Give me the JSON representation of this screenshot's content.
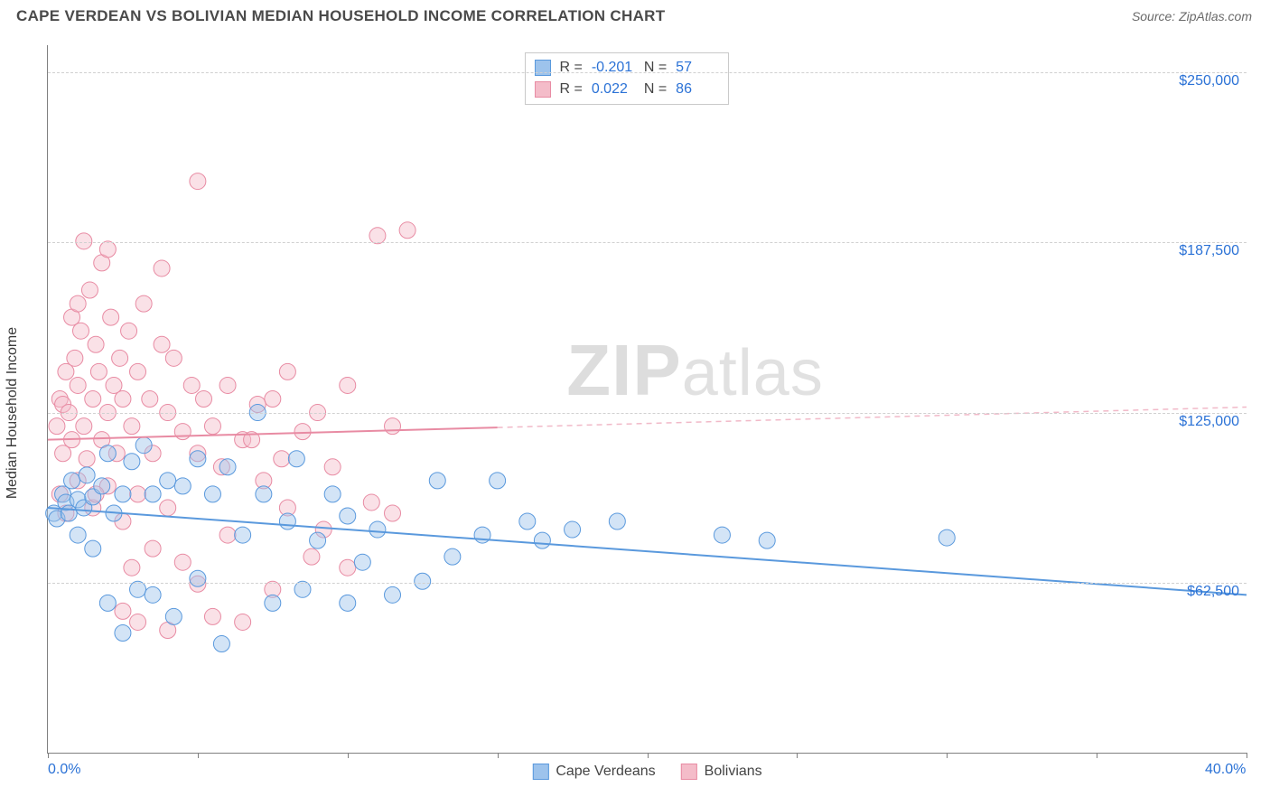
{
  "title": "CAPE VERDEAN VS BOLIVIAN MEDIAN HOUSEHOLD INCOME CORRELATION CHART",
  "source_label": "Source: ZipAtlas.com",
  "ylabel": "Median Household Income",
  "watermark": {
    "zip": "ZIP",
    "rest": "atlas"
  },
  "chart": {
    "type": "scatter",
    "background_color": "#ffffff",
    "grid_color": "#d0d0d0",
    "axis_color": "#808080",
    "text_color": "#4a4a4a",
    "value_label_color": "#2b72d6",
    "title_fontsize": 17,
    "label_fontsize": 16,
    "xlim": [
      0,
      40
    ],
    "ylim": [
      0,
      260000
    ],
    "x_ticks": [
      0,
      5,
      10,
      15,
      20,
      25,
      30,
      35,
      40
    ],
    "x_tick_labels": {
      "0": "0.0%",
      "40": "40.0%"
    },
    "y_gridlines": [
      62500,
      125000,
      187500,
      250000
    ],
    "y_grid_labels": {
      "62500": "$62,500",
      "125000": "$125,000",
      "187500": "$187,500",
      "250000": "$250,000"
    },
    "marker_radius": 9,
    "marker_opacity": 0.45,
    "line_width": 2,
    "series": [
      {
        "name": "Cape Verdeans",
        "color_fill": "#9dc3ec",
        "color_stroke": "#5a99dd",
        "R": "-0.201",
        "N": "57",
        "trend": {
          "y_at_x0": 90000,
          "y_at_xmax": 58000,
          "solid_until_x": 40
        },
        "points": [
          [
            0.2,
            88000
          ],
          [
            0.3,
            86000
          ],
          [
            0.5,
            95000
          ],
          [
            0.6,
            92000
          ],
          [
            0.7,
            88000
          ],
          [
            0.8,
            100000
          ],
          [
            1.0,
            93000
          ],
          [
            1.0,
            80000
          ],
          [
            1.2,
            90000
          ],
          [
            1.3,
            102000
          ],
          [
            1.5,
            94000
          ],
          [
            1.5,
            75000
          ],
          [
            1.8,
            98000
          ],
          [
            2.0,
            110000
          ],
          [
            2.0,
            55000
          ],
          [
            2.2,
            88000
          ],
          [
            2.5,
            95000
          ],
          [
            2.5,
            44000
          ],
          [
            2.8,
            107000
          ],
          [
            3.0,
            60000
          ],
          [
            3.2,
            113000
          ],
          [
            3.5,
            95000
          ],
          [
            3.5,
            58000
          ],
          [
            4.0,
            100000
          ],
          [
            4.2,
            50000
          ],
          [
            4.5,
            98000
          ],
          [
            5.0,
            108000
          ],
          [
            5.0,
            64000
          ],
          [
            5.5,
            95000
          ],
          [
            5.8,
            40000
          ],
          [
            6.0,
            105000
          ],
          [
            6.5,
            80000
          ],
          [
            7.0,
            125000
          ],
          [
            7.2,
            95000
          ],
          [
            7.5,
            55000
          ],
          [
            8.0,
            85000
          ],
          [
            8.3,
            108000
          ],
          [
            8.5,
            60000
          ],
          [
            9.0,
            78000
          ],
          [
            9.5,
            95000
          ],
          [
            10.0,
            87000
          ],
          [
            10.0,
            55000
          ],
          [
            10.5,
            70000
          ],
          [
            11.0,
            82000
          ],
          [
            11.5,
            58000
          ],
          [
            12.5,
            63000
          ],
          [
            13.0,
            100000
          ],
          [
            13.5,
            72000
          ],
          [
            14.5,
            80000
          ],
          [
            15.0,
            100000
          ],
          [
            16.0,
            85000
          ],
          [
            16.5,
            78000
          ],
          [
            17.5,
            82000
          ],
          [
            19.0,
            85000
          ],
          [
            22.5,
            80000
          ],
          [
            24.0,
            78000
          ],
          [
            30.0,
            79000
          ]
        ]
      },
      {
        "name": "Bolivians",
        "color_fill": "#f4bcc9",
        "color_stroke": "#e88ba3",
        "R": "0.022",
        "N": "86",
        "trend": {
          "y_at_x0": 115000,
          "y_at_xmax": 127000,
          "solid_until_x": 15
        },
        "points": [
          [
            0.3,
            120000
          ],
          [
            0.4,
            130000
          ],
          [
            0.5,
            128000
          ],
          [
            0.5,
            110000
          ],
          [
            0.6,
            140000
          ],
          [
            0.7,
            125000
          ],
          [
            0.8,
            160000
          ],
          [
            0.8,
            115000
          ],
          [
            0.9,
            145000
          ],
          [
            1.0,
            135000
          ],
          [
            1.0,
            100000
          ],
          [
            1.1,
            155000
          ],
          [
            1.2,
            120000
          ],
          [
            1.3,
            108000
          ],
          [
            1.4,
            170000
          ],
          [
            1.5,
            130000
          ],
          [
            1.5,
            90000
          ],
          [
            1.6,
            150000
          ],
          [
            1.7,
            140000
          ],
          [
            1.8,
            115000
          ],
          [
            1.8,
            180000
          ],
          [
            2.0,
            125000
          ],
          [
            2.0,
            98000
          ],
          [
            2.1,
            160000
          ],
          [
            2.2,
            135000
          ],
          [
            2.3,
            110000
          ],
          [
            2.4,
            145000
          ],
          [
            2.5,
            130000
          ],
          [
            2.5,
            85000
          ],
          [
            2.7,
            155000
          ],
          [
            2.8,
            120000
          ],
          [
            3.0,
            140000
          ],
          [
            3.0,
            95000
          ],
          [
            3.2,
            165000
          ],
          [
            3.4,
            130000
          ],
          [
            3.5,
            110000
          ],
          [
            3.5,
            75000
          ],
          [
            3.8,
            150000
          ],
          [
            4.0,
            125000
          ],
          [
            4.0,
            90000
          ],
          [
            4.2,
            145000
          ],
          [
            4.5,
            118000
          ],
          [
            4.5,
            70000
          ],
          [
            4.8,
            135000
          ],
          [
            5.0,
            110000
          ],
          [
            5.0,
            62000
          ],
          [
            5.2,
            130000
          ],
          [
            5.5,
            120000
          ],
          [
            5.5,
            50000
          ],
          [
            5.8,
            105000
          ],
          [
            6.0,
            135000
          ],
          [
            6.0,
            80000
          ],
          [
            6.5,
            115000
          ],
          [
            6.5,
            48000
          ],
          [
            7.0,
            128000
          ],
          [
            7.2,
            100000
          ],
          [
            7.5,
            130000
          ],
          [
            7.5,
            60000
          ],
          [
            8.0,
            140000
          ],
          [
            8.0,
            90000
          ],
          [
            8.5,
            118000
          ],
          [
            8.8,
            72000
          ],
          [
            9.0,
            125000
          ],
          [
            9.5,
            105000
          ],
          [
            10.0,
            135000
          ],
          [
            10.0,
            68000
          ],
          [
            11.0,
            190000
          ],
          [
            11.5,
            120000
          ],
          [
            12.0,
            192000
          ],
          [
            2.0,
            185000
          ],
          [
            1.2,
            188000
          ],
          [
            3.8,
            178000
          ],
          [
            5.0,
            210000
          ],
          [
            4.0,
            45000
          ],
          [
            3.0,
            48000
          ],
          [
            2.5,
            52000
          ],
          [
            6.8,
            115000
          ],
          [
            7.8,
            108000
          ],
          [
            9.2,
            82000
          ],
          [
            10.8,
            92000
          ],
          [
            1.0,
            165000
          ],
          [
            1.6,
            95000
          ],
          [
            2.8,
            68000
          ],
          [
            0.4,
            95000
          ],
          [
            0.6,
            88000
          ],
          [
            11.5,
            88000
          ]
        ]
      }
    ]
  },
  "stats_box": {
    "R_label": "R =",
    "N_label": "N ="
  }
}
